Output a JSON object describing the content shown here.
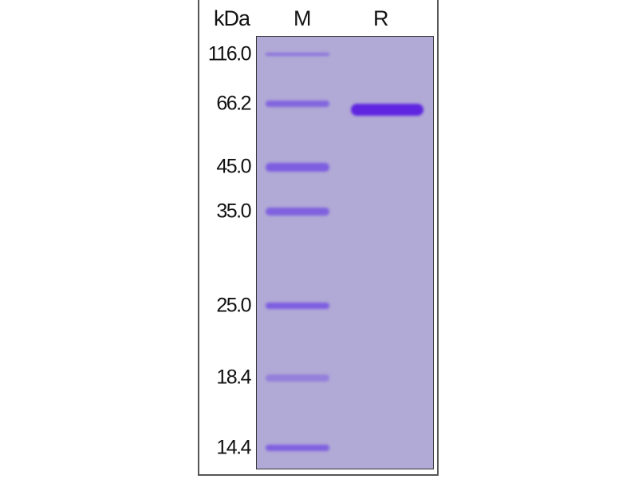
{
  "header": {
    "unit": "kDa",
    "lanes": [
      "M",
      "R"
    ]
  },
  "markers": [
    {
      "label": "116.0",
      "kda": 116.0
    },
    {
      "label": "66.2",
      "kda": 66.2
    },
    {
      "label": "45.0",
      "kda": 45.0
    },
    {
      "label": "35.0",
      "kda": 35.0
    },
    {
      "label": "25.0",
      "kda": 25.0
    },
    {
      "label": "18.4",
      "kda": 18.4
    },
    {
      "label": "14.4",
      "kda": 14.4
    }
  ],
  "colors": {
    "gel": "#b1a9d6",
    "marker_band": "#7d5ee0",
    "sample_band": "#5f25e0"
  }
}
